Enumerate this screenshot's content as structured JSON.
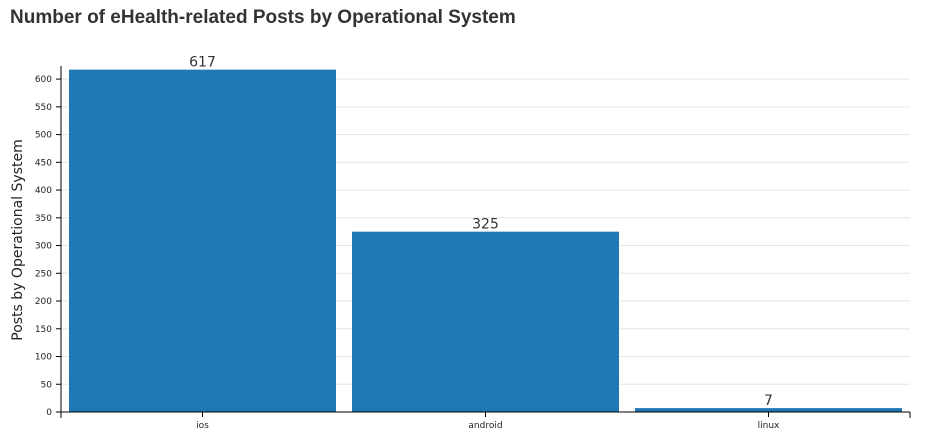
{
  "chart_data": {
    "type": "bar",
    "title": "Number of eHealth-related Posts by Operational System",
    "xlabel": "",
    "ylabel": "Posts by Operational System",
    "categories": [
      "ios",
      "android",
      "linux"
    ],
    "values": [
      617,
      325,
      7
    ],
    "value_labels": [
      "617",
      "325",
      "7"
    ],
    "ylim": [
      0,
      620
    ],
    "yticks": [
      0,
      50,
      100,
      150,
      200,
      250,
      300,
      350,
      400,
      450,
      500,
      550,
      600
    ],
    "grid": true,
    "legend": "none",
    "colors": {
      "bar": "#1f77b4",
      "grid": "#e6e6e6",
      "axis": "#000000"
    }
  }
}
